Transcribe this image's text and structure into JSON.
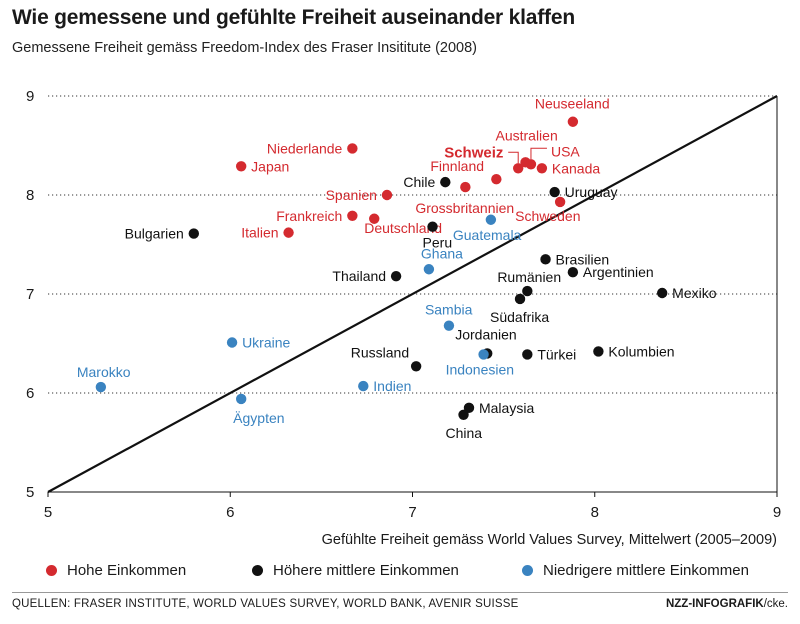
{
  "title": "Wie gemessene und gefühlte Freiheit auseinander klaffen",
  "subtitle": "Gemessene Freiheit gemäss Freedom-Index des Fraser Insititute (2008)",
  "colors": {
    "hoch": "#d42a2f",
    "hoeher_mittel": "#111111",
    "niedriger_mittel": "#3a83c0",
    "grid": "#333333"
  },
  "legend": [
    {
      "key": "hoch",
      "label": "Hohe Einkommen"
    },
    {
      "key": "hoeher_mittel",
      "label": "Höhere mittlere Einkommen"
    },
    {
      "key": "niedriger_mittel",
      "label": "Niedrigere mittlere Einkommen"
    }
  ],
  "sources": "QUELLEN: FRASER INSTITUTE, WORLD VALUES SURVEY, WORLD BANK, AVENIR SUISSE",
  "credit_bold": "NZZ-INFOGRAFIK",
  "credit_rest": "/cke.",
  "chart_data": {
    "type": "scatter",
    "xlabel": "Gefühlte Freiheit gemäss World Values Survey, Mittelwert (2005–2009)",
    "ylabel": "",
    "xlim": [
      5,
      9
    ],
    "ylim": [
      5,
      9
    ],
    "xticks": [
      5,
      6,
      7,
      8,
      9
    ],
    "yticks": [
      5,
      6,
      7,
      8,
      9
    ],
    "grid": "horizontal dotted",
    "reference_line": {
      "from": [
        5,
        5
      ],
      "to": [
        9,
        9
      ]
    },
    "points": [
      {
        "label": "Neuseeland",
        "x": 7.88,
        "y": 8.74,
        "group": "hoch"
      },
      {
        "label": "Australien",
        "x": 7.62,
        "y": 8.33,
        "group": "hoch"
      },
      {
        "label": "Schweiz",
        "x": 7.58,
        "y": 8.27,
        "group": "hoch",
        "bold": true
      },
      {
        "label": "USA",
        "x": 7.65,
        "y": 8.31,
        "group": "hoch"
      },
      {
        "label": "Kanada",
        "x": 7.71,
        "y": 8.27,
        "group": "hoch"
      },
      {
        "label": "Finnland",
        "x": 7.46,
        "y": 8.16,
        "group": "hoch"
      },
      {
        "label": "Grossbritannien",
        "x": 7.29,
        "y": 8.08,
        "group": "hoch"
      },
      {
        "label": "Niederlande",
        "x": 6.67,
        "y": 8.47,
        "group": "hoch"
      },
      {
        "label": "Japan",
        "x": 6.06,
        "y": 8.29,
        "group": "hoch"
      },
      {
        "label": "Spanien",
        "x": 6.86,
        "y": 8.0,
        "group": "hoch"
      },
      {
        "label": "Frankreich",
        "x": 6.67,
        "y": 7.79,
        "group": "hoch"
      },
      {
        "label": "Deutschland",
        "x": 6.79,
        "y": 7.76,
        "group": "hoch"
      },
      {
        "label": "Italien",
        "x": 6.32,
        "y": 7.62,
        "group": "hoch"
      },
      {
        "label": "Schweden",
        "x": 7.81,
        "y": 7.93,
        "group": "hoch"
      },
      {
        "label": "Chile",
        "x": 7.18,
        "y": 8.13,
        "group": "hoeher_mittel"
      },
      {
        "label": "Uruguay",
        "x": 7.78,
        "y": 8.03,
        "group": "hoeher_mittel"
      },
      {
        "label": "Bulgarien",
        "x": 5.8,
        "y": 7.61,
        "group": "hoeher_mittel"
      },
      {
        "label": "Peru",
        "x": 7.11,
        "y": 7.68,
        "group": "hoeher_mittel"
      },
      {
        "label": "Brasilien",
        "x": 7.73,
        "y": 7.35,
        "group": "hoeher_mittel"
      },
      {
        "label": "Argentinien",
        "x": 7.88,
        "y": 7.22,
        "group": "hoeher_mittel"
      },
      {
        "label": "Thailand",
        "x": 6.91,
        "y": 7.18,
        "group": "hoeher_mittel"
      },
      {
        "label": "Rumänien",
        "x": 7.63,
        "y": 7.03,
        "group": "hoeher_mittel"
      },
      {
        "label": "Südafrika",
        "x": 7.59,
        "y": 6.95,
        "group": "hoeher_mittel"
      },
      {
        "label": "Mexiko",
        "x": 8.37,
        "y": 7.01,
        "group": "hoeher_mittel"
      },
      {
        "label": "Kolumbien",
        "x": 8.02,
        "y": 6.42,
        "group": "hoeher_mittel"
      },
      {
        "label": "Türkei",
        "x": 7.63,
        "y": 6.39,
        "group": "hoeher_mittel"
      },
      {
        "label": "Russland",
        "x": 7.02,
        "y": 6.27,
        "group": "hoeher_mittel"
      },
      {
        "label": "Malaysia",
        "x": 7.31,
        "y": 5.85,
        "group": "hoeher_mittel"
      },
      {
        "label": "China",
        "x": 7.28,
        "y": 5.78,
        "group": "hoeher_mittel"
      },
      {
        "label": "Jordanien",
        "x": 7.41,
        "y": 6.4,
        "group": "hoeher_mittel"
      },
      {
        "label": "Guatemala",
        "x": 7.43,
        "y": 7.75,
        "group": "niedriger_mittel"
      },
      {
        "label": "Ghana",
        "x": 7.09,
        "y": 7.25,
        "group": "niedriger_mittel"
      },
      {
        "label": "Sambia",
        "x": 7.2,
        "y": 6.68,
        "group": "niedriger_mittel"
      },
      {
        "label": "Ukraine",
        "x": 6.01,
        "y": 6.51,
        "group": "niedriger_mittel"
      },
      {
        "label": "Indonesien",
        "x": 7.39,
        "y": 6.39,
        "group": "niedriger_mittel"
      },
      {
        "label": "Marokko",
        "x": 5.29,
        "y": 6.06,
        "group": "niedriger_mittel"
      },
      {
        "label": "Indien",
        "x": 6.73,
        "y": 6.07,
        "group": "niedriger_mittel"
      },
      {
        "label": "Ägypten",
        "x": 6.06,
        "y": 5.94,
        "group": "niedriger_mittel"
      }
    ]
  }
}
